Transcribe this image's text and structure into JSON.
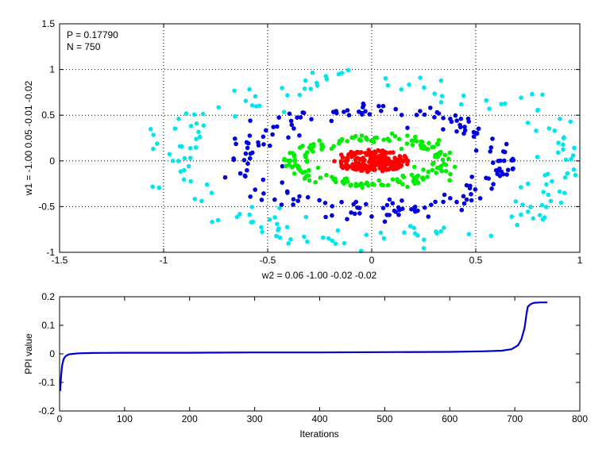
{
  "chart_data": [
    {
      "type": "scatter",
      "annotations": [
        "P = 0.17790",
        "N = 750"
      ],
      "xlabel": "w2 = 0.06  -1.00  -0.02  -0.02",
      "ylabel": "w1 = -1.00  0.05  -0.01  -0.02",
      "xlim": [
        -1.5,
        1.0
      ],
      "ylim": [
        -1.0,
        1.5
      ],
      "xticks": [
        -1.5,
        -1,
        -0.5,
        0,
        0.5,
        1
      ],
      "yticks": [
        -1,
        -0.5,
        0,
        0.5,
        1,
        1.5
      ],
      "xtick_labels": [
        "-1.5",
        "-1",
        "-0.5",
        "0",
        "0.5",
        "1"
      ],
      "ytick_labels": [
        "-1",
        "-0.5",
        "0",
        "0.5",
        "1",
        "1.5"
      ],
      "grid": true,
      "colors": [
        "#ff0000",
        "#00ee00",
        "#0000dd",
        "#00e5ee"
      ],
      "series": [
        {
          "shape": "ellipse",
          "rx": 0.18,
          "ry": 0.12,
          "count": 200,
          "color": "#ff0000"
        },
        {
          "shape": "ring",
          "rx": 0.36,
          "ry": 0.25,
          "count": 180,
          "color": "#00ee00"
        },
        {
          "shape": "ring",
          "rx": 0.62,
          "ry": 0.55,
          "count": 190,
          "color": "#0000dd"
        },
        {
          "shape": "ring",
          "rx": 0.95,
          "ry": 0.86,
          "count": 180,
          "color": "#00e5ee"
        }
      ]
    },
    {
      "type": "line",
      "xlabel": "Iterations",
      "ylabel": "PPI value",
      "xlim": [
        0,
        800
      ],
      "ylim": [
        -0.2,
        0.2
      ],
      "xticks": [
        0,
        100,
        200,
        300,
        400,
        500,
        600,
        700,
        800
      ],
      "yticks": [
        -0.2,
        -0.1,
        0,
        0.1,
        0.2
      ],
      "xtick_labels": [
        "0",
        "100",
        "200",
        "300",
        "400",
        "500",
        "600",
        "700",
        "800"
      ],
      "ytick_labels": [
        "-0.2",
        "-0.1",
        "0",
        "0.1",
        "0.2"
      ],
      "color": "#0000cc",
      "x": [
        1,
        2,
        3,
        4,
        5,
        6,
        8,
        10,
        14,
        20,
        30,
        50,
        100,
        200,
        300,
        400,
        500,
        600,
        650,
        680,
        695,
        705,
        710,
        715,
        718,
        720,
        725,
        730,
        740,
        750
      ],
      "y": [
        -0.13,
        -0.09,
        -0.06,
        -0.04,
        -0.03,
        -0.02,
        -0.012,
        -0.007,
        -0.002,
        0.0,
        0.002,
        0.003,
        0.004,
        0.004,
        0.005,
        0.005,
        0.006,
        0.007,
        0.009,
        0.011,
        0.016,
        0.03,
        0.05,
        0.09,
        0.14,
        0.165,
        0.175,
        0.179,
        0.18,
        0.18
      ]
    }
  ]
}
